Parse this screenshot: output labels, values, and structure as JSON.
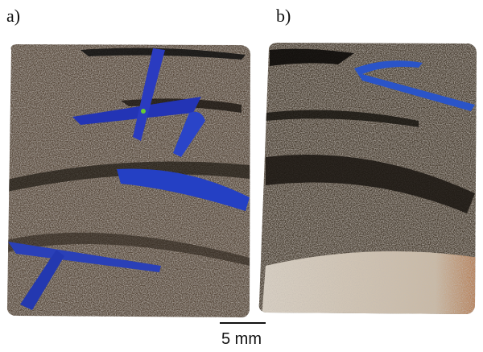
{
  "panels": [
    {
      "label": "a)"
    },
    {
      "label": "b)"
    }
  ],
  "scale_bar": {
    "label": "5 mm"
  }
}
